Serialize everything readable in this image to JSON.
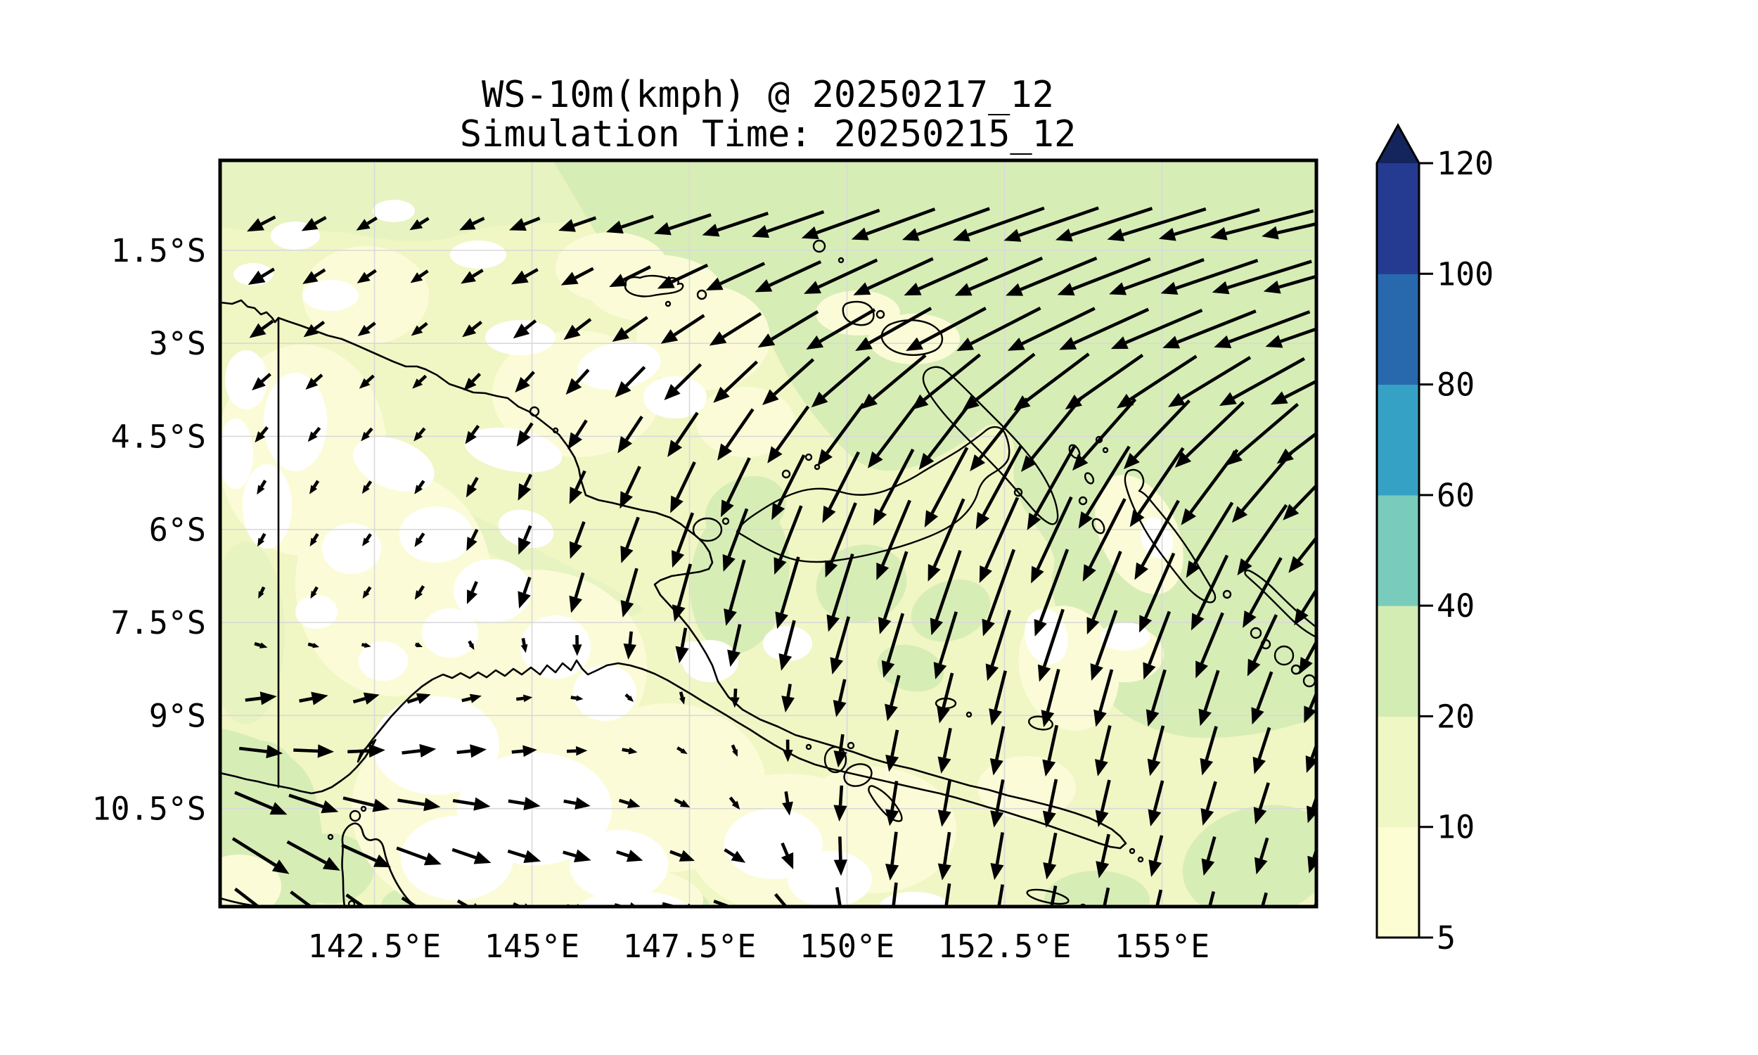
{
  "title": {
    "line1": "WS-10m(kmph) @ 20250217_12",
    "line2": "Simulation Time: 20250215_12"
  },
  "axes": {
    "x_ticks": [
      {
        "value": 142.5,
        "label": "142.5°E"
      },
      {
        "value": 145.0,
        "label": "145°E"
      },
      {
        "value": 147.5,
        "label": "147.5°E"
      },
      {
        "value": 150.0,
        "label": "150°E"
      },
      {
        "value": 152.5,
        "label": "152.5°E"
      },
      {
        "value": 155.0,
        "label": "155°E"
      }
    ],
    "y_ticks": [
      {
        "value": 1.5,
        "label": "1.5°S"
      },
      {
        "value": 3.0,
        "label": "3°S"
      },
      {
        "value": 4.5,
        "label": "4.5°S"
      },
      {
        "value": 6.0,
        "label": "6°S"
      },
      {
        "value": 7.5,
        "label": "7.5°S"
      },
      {
        "value": 9.0,
        "label": "9°S"
      },
      {
        "value": 10.5,
        "label": "10.5°S"
      }
    ]
  },
  "colorbar": {
    "levels": [
      5,
      10,
      20,
      40,
      60,
      80,
      100,
      120
    ],
    "tick_labels": [
      "5",
      "10",
      "20",
      "40",
      "60",
      "80",
      "100",
      "120"
    ],
    "segment_colors": [
      "#fcfdd2",
      "#eff7c4",
      "#d3ecb3",
      "#79ccbc",
      "#35a2c5",
      "#2869ae",
      "#253a91"
    ],
    "over_color": "#13255c",
    "outline_color": "#000000"
  },
  "chart_data": {
    "type": "quiver_map",
    "title": "WS-10m(kmph) @ 20250217_12",
    "subtitle": "Simulation Time: 20250215_12",
    "variable": "WS-10m",
    "units": "kmph",
    "valid_datetime": "20250217_12",
    "simulation_datetime": "20250215_12",
    "lon_range": [
      140.05,
      157.45
    ],
    "lat_s_range": [
      0.05,
      12.08
    ],
    "x_tick_values": [
      142.5,
      145.0,
      147.5,
      150.0,
      152.5,
      155.0
    ],
    "y_tick_values": [
      1.5,
      3.0,
      4.5,
      6.0,
      7.5,
      9.0,
      10.5
    ],
    "fill_levels": [
      5,
      10,
      20,
      40,
      60,
      80,
      100,
      120
    ],
    "fill_colors": {
      "under": "#ffffff",
      "5-10": "#fbfcd7",
      "10-20": "#f1f6c5",
      "20-40": "#d7edb6",
      "40-60": "#79ccbc",
      "60-80": "#35a2c5",
      "80-100": "#2869ae",
      "100-120": "#253a91",
      "over": "#13255c"
    },
    "wind_field_anchors": {
      "comment": "u positive east, v positive north, kmph; rows = lats_s, cols = lons",
      "lons": [
        140.5,
        143.0,
        145.5,
        148.0,
        150.5,
        153.0,
        155.5,
        157.5
      ],
      "lats_s": [
        1,
        3,
        5,
        7,
        9,
        11,
        12
      ],
      "uv_kmph": [
        [
          [
            -10,
            -5
          ],
          [
            -6,
            -4
          ],
          [
            -12,
            -4
          ],
          [
            -22,
            -7
          ],
          [
            -28,
            -10
          ],
          [
            -32,
            -11
          ],
          [
            -34,
            -10
          ],
          [
            -36,
            -8
          ]
        ],
        [
          [
            -8,
            -6
          ],
          [
            -5,
            -4
          ],
          [
            -8,
            -7
          ],
          [
            -16,
            -11
          ],
          [
            -25,
            -15
          ],
          [
            -29,
            -15
          ],
          [
            -31,
            -13
          ],
          [
            -33,
            -12
          ]
        ],
        [
          [
            -3,
            -5
          ],
          [
            -3,
            -4
          ],
          [
            -5,
            -10
          ],
          [
            -10,
            -19
          ],
          [
            -14,
            -25
          ],
          [
            -17,
            -29
          ],
          [
            -20,
            -26
          ],
          [
            -23,
            -22
          ]
        ],
        [
          [
            -2,
            -4
          ],
          [
            -3,
            -4
          ],
          [
            -4,
            -13
          ],
          [
            -6,
            -22
          ],
          [
            -9,
            -28
          ],
          [
            -11,
            -30
          ],
          [
            -12,
            -26
          ],
          [
            -14,
            -22
          ]
        ],
        [
          [
            13,
            2
          ],
          [
            10,
            4
          ],
          [
            6,
            2
          ],
          [
            1,
            -3
          ],
          [
            -3,
            -13
          ],
          [
            -4,
            -18
          ],
          [
            -5,
            -18
          ],
          [
            -6,
            -16
          ]
        ],
        [
          [
            20,
            -12
          ],
          [
            17,
            -5
          ],
          [
            11,
            -3
          ],
          [
            5,
            -3
          ],
          [
            -2,
            -16
          ],
          [
            -3,
            -16
          ],
          [
            -4,
            -14
          ],
          [
            -4,
            -12
          ]
        ],
        [
          [
            18,
            -14
          ],
          [
            12,
            -8
          ],
          [
            6,
            -2
          ],
          [
            16,
            -4
          ],
          [
            -2,
            -18
          ],
          [
            -3,
            -16
          ],
          [
            -3,
            -12
          ],
          [
            -3,
            -10
          ]
        ]
      ]
    },
    "quiver_grid": {
      "lon0": 140.7,
      "dlon": 0.836,
      "ncols": 21,
      "lat0_s": 1.08,
      "dlat": 0.849,
      "nrows": 14
    }
  }
}
